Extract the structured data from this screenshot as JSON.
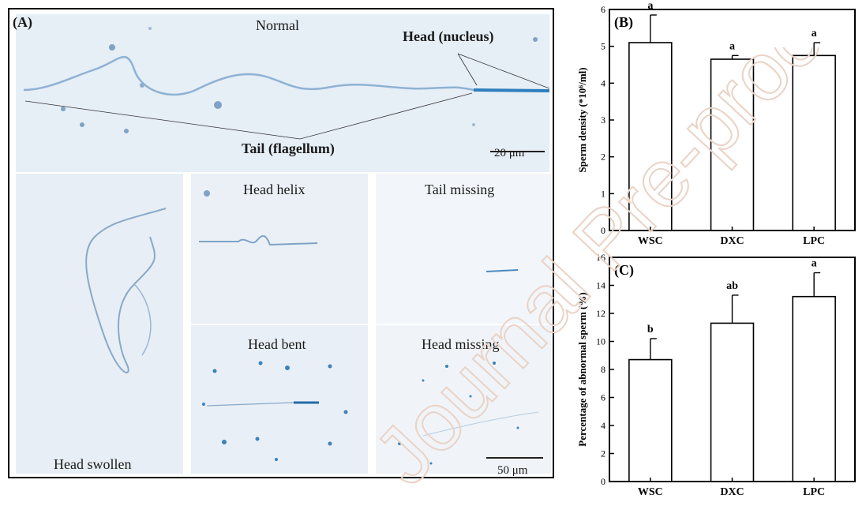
{
  "panel_a": {
    "label": "(A)",
    "normal": {
      "title": "Normal",
      "head_label": "Head (nucleus)",
      "tail_label": "Tail (flagellum)",
      "scale_bar": "20 μm"
    },
    "head_swollen": "Head swollen",
    "head_helix": "Head helix",
    "tail_missing": "Tail missing",
    "head_bent": "Head bent",
    "head_missing": "Head missing",
    "scale_bar_2": "50 μm"
  },
  "watermark": "Journal Pre-proof",
  "chart_data": [
    {
      "panel": "(B)",
      "type": "bar",
      "categories": [
        "WSC",
        "DXC",
        "LPC"
      ],
      "values": [
        5.1,
        4.65,
        4.75
      ],
      "errors": [
        0.75,
        0.1,
        0.35
      ],
      "letters": [
        "a",
        "a",
        "a"
      ],
      "ylabel": "Sperm density (*10⁶/ml)",
      "ylim": [
        0,
        6
      ],
      "yticks": [
        "0",
        "1",
        "2",
        "3",
        "4",
        "5",
        "6"
      ]
    },
    {
      "panel": "(C)",
      "type": "bar",
      "categories": [
        "WSC",
        "DXC",
        "LPC"
      ],
      "values": [
        8.7,
        11.3,
        13.2
      ],
      "errors": [
        1.5,
        2.0,
        1.7
      ],
      "letters": [
        "b",
        "ab",
        "a"
      ],
      "ylabel": "Percentage of abnormal sperm (%)",
      "ylim": [
        0,
        16
      ],
      "yticks": [
        "0",
        "2",
        "4",
        "6",
        "8",
        "10",
        "12",
        "14",
        "16"
      ]
    }
  ]
}
